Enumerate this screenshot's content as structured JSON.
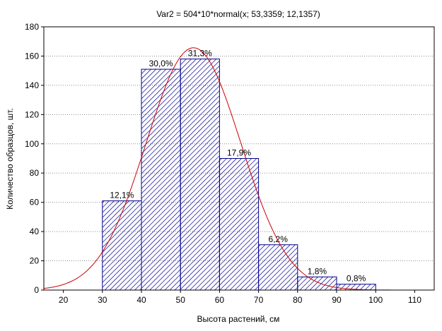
{
  "chart_data": {
    "type": "bar",
    "title": "Var2 = 504*10*normal(x; 53,3359; 12,1357)",
    "xlabel": "Высота растений, см",
    "ylabel": "Количество образцов, шт.",
    "xlim": [
      15,
      115
    ],
    "ylim": [
      0,
      180
    ],
    "x_ticks": [
      "20",
      "30",
      "40",
      "50",
      "60",
      "70",
      "80",
      "90",
      "100",
      "110"
    ],
    "x_tick_values": [
      20,
      30,
      40,
      50,
      60,
      70,
      80,
      90,
      100,
      110
    ],
    "y_ticks": [
      "0",
      "20",
      "40",
      "60",
      "80",
      "100",
      "120",
      "140",
      "160",
      "180"
    ],
    "y_tick_values": [
      0,
      20,
      40,
      60,
      80,
      100,
      120,
      140,
      160,
      180
    ],
    "bins": [
      {
        "from": 30,
        "to": 40,
        "count": 61,
        "label": "12,1%"
      },
      {
        "from": 40,
        "to": 50,
        "count": 151,
        "label": "30,0%"
      },
      {
        "from": 50,
        "to": 60,
        "count": 158,
        "label": "31,3%"
      },
      {
        "from": 60,
        "to": 70,
        "count": 90,
        "label": "17,9%"
      },
      {
        "from": 70,
        "to": 80,
        "count": 31,
        "label": "6,2%"
      },
      {
        "from": 80,
        "to": 90,
        "count": 9,
        "label": "1,8%"
      },
      {
        "from": 90,
        "to": 100,
        "count": 4,
        "label": "0,8%"
      }
    ],
    "fit_curve": {
      "distribution": "normal",
      "n": 504,
      "bin_width": 10,
      "mean": 53.3359,
      "sd": 12.1357
    },
    "grid": true,
    "colors": {
      "bar_stroke": "#00008b",
      "hatch": "#00008b",
      "curve": "#cc0000",
      "grid": "#8c8c8c"
    }
  }
}
